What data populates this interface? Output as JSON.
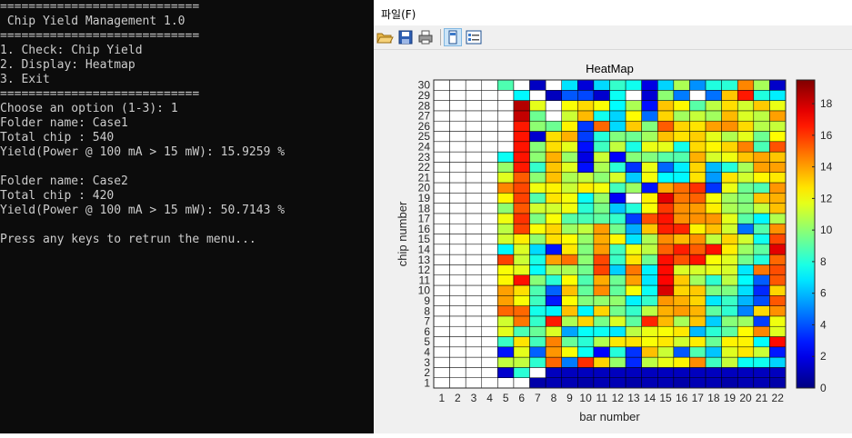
{
  "console": {
    "lines": [
      "============================",
      " Chip Yield Management 1.0",
      "============================",
      "1. Check: Chip Yield",
      "2. Display: Heatmap",
      "3. Exit",
      "============================",
      "Choose an option (1-3): 1",
      "Folder name: Case1",
      "Total chip : 540",
      "Yield(Power @ 100 mA > 15 mW): 15.9259 %",
      "",
      "Folder name: Case2",
      "Total chip : 420",
      "Yield(Power @ 100 mA > 15 mW): 50.7143 %",
      "",
      "Press any keys to retrun the menu..."
    ]
  },
  "figure": {
    "menu_file": "파일(F)",
    "toolbar_icons": [
      "open-folder-icon",
      "save-icon",
      "print-icon",
      "portrait-icon",
      "property-inspector-icon"
    ]
  },
  "chart_data": {
    "type": "heatmap",
    "title": "HeatMap",
    "xlabel": "bar number",
    "ylabel": "chip number",
    "x": [
      1,
      2,
      3,
      4,
      5,
      6,
      7,
      8,
      9,
      10,
      11,
      12,
      13,
      14,
      15,
      16,
      17,
      18,
      19,
      20,
      21,
      22
    ],
    "y": [
      1,
      2,
      3,
      4,
      5,
      6,
      7,
      8,
      9,
      10,
      11,
      12,
      13,
      14,
      15,
      16,
      17,
      18,
      19,
      20,
      21,
      22,
      23,
      24,
      25,
      26,
      27,
      28,
      29,
      30
    ],
    "clim": [
      0,
      19.5
    ],
    "colorbar_ticks": [
      0,
      2,
      4,
      6,
      8,
      10,
      12,
      14,
      16,
      18
    ],
    "colormap": "jet",
    "grid": true,
    "values": [
      [
        null,
        null,
        null,
        null,
        null,
        null,
        0.8,
        1.0,
        1.0,
        0.8,
        1.0,
        1.0,
        0.8,
        1.0,
        1.0,
        0.8,
        1.0,
        1.0,
        0.8,
        1.0,
        1.0,
        0.8
      ],
      [
        null,
        null,
        null,
        null,
        1.5,
        8.1,
        null,
        1.2,
        1.2,
        1.2,
        1.2,
        1.2,
        1.2,
        1.2,
        1.2,
        1.2,
        1.2,
        1.2,
        1.2,
        1.2,
        1.2,
        1.2
      ],
      [
        null,
        null,
        null,
        null,
        11.0,
        11.0,
        8.2,
        15.1,
        4.8,
        16.2,
        13.0,
        10.2,
        3.2,
        10.9,
        11.8,
        12.4,
        14.4,
        8.5,
        11.1,
        7.5,
        7.6,
        6.5
      ],
      [
        null,
        null,
        null,
        null,
        2.8,
        11.7,
        4.3,
        14.2,
        12.1,
        7.5,
        2.4,
        8.0,
        3.4,
        13.4,
        11.2,
        4.1,
        8.8,
        6.2,
        11.6,
        12.6,
        11.2,
        2.9
      ],
      [
        null,
        null,
        null,
        null,
        8.4,
        12.7,
        8.6,
        14.6,
        9.3,
        8.1,
        10.7,
        12.6,
        12.7,
        12.1,
        12.6,
        11.3,
        12.5,
        9.3,
        12.4,
        12.4,
        7.3,
        16.9
      ],
      [
        null,
        null,
        null,
        null,
        11.7,
        8.7,
        9.3,
        11.5,
        5.6,
        7.4,
        7.5,
        6.9,
        10.9,
        11.8,
        12.1,
        12.6,
        6.0,
        8.1,
        9.1,
        12.2,
        14.5,
        11.6
      ],
      [
        null,
        null,
        null,
        null,
        11.3,
        14.8,
        8.3,
        16.6,
        10.6,
        13.0,
        9.6,
        11.5,
        9.1,
        16.4,
        13.5,
        10.5,
        13.3,
        6.4,
        9.9,
        10.3,
        3.6,
        11.9
      ],
      [
        null,
        null,
        null,
        null,
        15.1,
        15.1,
        7.7,
        7.1,
        13.4,
        7.2,
        13.0,
        9.5,
        8.3,
        10.9,
        13.7,
        14.1,
        13.6,
        9.1,
        8.2,
        4.9,
        12.9,
        14.3
      ],
      [
        null,
        null,
        null,
        null,
        14.0,
        12.1,
        8.5,
        2.9,
        12.2,
        9.8,
        10.1,
        10.1,
        7.1,
        8.3,
        14.2,
        13.7,
        13.0,
        6.9,
        8.4,
        5.9,
        3.9,
        15.4
      ],
      [
        null,
        null,
        null,
        null,
        14.0,
        12.8,
        8.8,
        4.3,
        13.4,
        9.2,
        14.4,
        9.2,
        12.1,
        7.5,
        17.8,
        13.0,
        13.2,
        9.7,
        9.7,
        6.7,
        3.2,
        13.0
      ],
      [
        null,
        null,
        null,
        null,
        12.3,
        16.8,
        9.9,
        8.1,
        12.2,
        8.8,
        13.8,
        9.4,
        14.0,
        6.9,
        17.0,
        13.2,
        10.4,
        8.2,
        10.9,
        7.3,
        4.2,
        15.4
      ],
      [
        null,
        null,
        null,
        null,
        12.1,
        11.7,
        7.4,
        10.4,
        10.6,
        9.5,
        15.8,
        6.4,
        14.8,
        7.1,
        16.9,
        11.5,
        11.4,
        11.7,
        11.4,
        6.9,
        14.8,
        15.6
      ],
      [
        null,
        null,
        null,
        null,
        15.8,
        11.2,
        7.8,
        14.0,
        14.9,
        10.0,
        15.7,
        8.4,
        12.7,
        9.4,
        16.8,
        15.5,
        16.7,
        12.1,
        11.6,
        9.5,
        8.0,
        15.1
      ],
      [
        null,
        null,
        null,
        null,
        7.2,
        11.5,
        6.6,
        2.8,
        12.6,
        9.8,
        14.1,
        8.6,
        11.9,
        10.9,
        15.2,
        16.5,
        15.3,
        16.8,
        12.5,
        10.3,
        9.1,
        17.6
      ],
      [
        null,
        null,
        null,
        null,
        11.3,
        12.5,
        10.1,
        12.8,
        12.2,
        10.2,
        13.8,
        12.3,
        6.8,
        10.6,
        14.4,
        13.5,
        14.3,
        11.0,
        13.0,
        11.3,
        7.6,
        15.7
      ],
      [
        null,
        null,
        null,
        null,
        10.9,
        15.8,
        12.1,
        13.0,
        10.3,
        11.0,
        14.1,
        9.5,
        5.7,
        13.3,
        16.5,
        16.4,
        12.4,
        13.4,
        11.3,
        4.6,
        8.9,
        14.3
      ],
      [
        null,
        null,
        null,
        null,
        11.9,
        16.1,
        9.7,
        12.1,
        9.0,
        8.7,
        9.1,
        8.3,
        3.6,
        15.6,
        16.7,
        14.3,
        14.3,
        14.2,
        11.7,
        9.0,
        7.2,
        10.7
      ],
      [
        null,
        null,
        null,
        null,
        10.0,
        15.4,
        11.3,
        11.3,
        11.9,
        8.1,
        9.6,
        6.2,
        8.0,
        12.1,
        16.0,
        14.3,
        14.1,
        12.5,
        10.6,
        9.9,
        11.1,
        13.4
      ],
      [
        null,
        null,
        null,
        null,
        12.3,
        15.8,
        8.9,
        12.7,
        12.0,
        7.5,
        10.2,
        2.3,
        null,
        12.4,
        17.6,
        14.8,
        15.2,
        12.0,
        10.4,
        9.7,
        13.3,
        13.7
      ],
      [
        null,
        null,
        null,
        null,
        14.5,
        15.7,
        11.9,
        12.4,
        11.2,
        12.5,
        12.0,
        8.6,
        10.3,
        2.8,
        13.9,
        15.0,
        16.1,
        3.4,
        11.8,
        9.4,
        8.8,
        14.2
      ],
      [
        null,
        null,
        null,
        null,
        11.6,
        15.3,
        10.0,
        13.4,
        10.6,
        11.1,
        10.0,
        11.4,
        6.3,
        12.0,
        7.3,
        7.2,
        12.7,
        5.4,
        12.7,
        11.3,
        12.3,
        12.6
      ],
      [
        null,
        null,
        null,
        null,
        10.2,
        16.6,
        8.3,
        13.3,
        11.6,
        2.7,
        10.6,
        8.1,
        3.4,
        11.8,
        4.4,
        7.0,
        13.0,
        6.0,
        8.0,
        10.5,
        14.0,
        14.0
      ],
      [
        null,
        null,
        null,
        null,
        7.5,
        16.7,
        10.0,
        13.7,
        10.2,
        1.9,
        11.2,
        2.4,
        9.9,
        9.8,
        9.0,
        8.9,
        13.7,
        11.4,
        11.9,
        13.3,
        13.9,
        13.3
      ],
      [
        null,
        null,
        null,
        null,
        null,
        16.7,
        9.9,
        12.8,
        11.7,
        2.7,
        8.5,
        11.0,
        7.8,
        11.8,
        11.7,
        7.7,
        12.9,
        12.3,
        13.0,
        14.6,
        8.7,
        15.5
      ],
      [
        null,
        null,
        null,
        null,
        null,
        16.7,
        1.5,
        12.8,
        13.7,
        3.6,
        8.0,
        9.8,
        9.4,
        10.4,
        13.4,
        12.7,
        13.1,
        11.7,
        10.7,
        11.7,
        9.4,
        12.2
      ],
      [
        null,
        null,
        null,
        null,
        null,
        16.6,
        10.0,
        9.4,
        12.4,
        3.5,
        15.1,
        6.6,
        13.2,
        9.8,
        15.3,
        13.0,
        12.7,
        14.0,
        14.3,
        12.9,
        10.8,
        11.1
      ],
      [
        null,
        null,
        null,
        null,
        null,
        18.2,
        9.4,
        null,
        11.2,
        13.5,
        7.6,
        6.5,
        12.2,
        4.5,
        13.0,
        10.4,
        11.1,
        10.4,
        13.5,
        11.5,
        10.9,
        14.0
      ],
      [
        null,
        null,
        null,
        null,
        null,
        18.5,
        11.7,
        null,
        12.1,
        12.9,
        12.1,
        7.3,
        10.6,
        2.7,
        13.3,
        12.3,
        9.0,
        10.9,
        12.8,
        11.3,
        13.2,
        11.8
      ],
      [
        null,
        null,
        null,
        null,
        null,
        7.2,
        null,
        1.2,
        4.1,
        3.8,
        1.5,
        7.5,
        null,
        1.6,
        10.0,
        4.8,
        null,
        4.6,
        13.3,
        16.6,
        7.9,
        7.0
      ],
      [
        null,
        null,
        null,
        null,
        8.8,
        null,
        1.3,
        null,
        6.8,
        1.7,
        6.6,
        8.3,
        7.6,
        1.9,
        6.5,
        10.6,
        5.2,
        7.9,
        8.1,
        14.5,
        10.5,
        1.4
      ]
    ]
  }
}
